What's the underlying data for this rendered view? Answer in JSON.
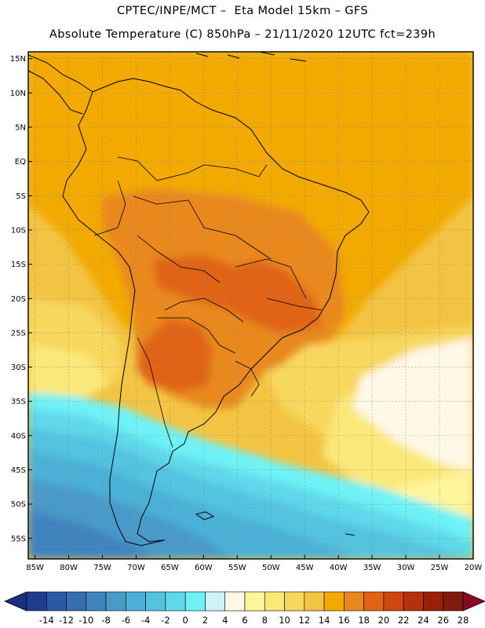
{
  "header": {
    "line1": "CPTEC/INPE/MCT –  Eta Model 15km – GFS",
    "line2": "Absolute Temperature (C) 850hPa – 21/11/2020 12UTC fct=239h"
  },
  "map": {
    "region": "South America",
    "lat_range": [
      -58,
      16
    ],
    "lon_range": [
      -86,
      -20
    ],
    "lat_ticks": [
      {
        "value": 15,
        "label": "15N"
      },
      {
        "value": 10,
        "label": "10N"
      },
      {
        "value": 5,
        "label": "5N"
      },
      {
        "value": 0,
        "label": "EQ"
      },
      {
        "value": -5,
        "label": "5S"
      },
      {
        "value": -10,
        "label": "10S"
      },
      {
        "value": -15,
        "label": "15S"
      },
      {
        "value": -20,
        "label": "20S"
      },
      {
        "value": -25,
        "label": "25S"
      },
      {
        "value": -30,
        "label": "30S"
      },
      {
        "value": -35,
        "label": "35S"
      },
      {
        "value": -40,
        "label": "40S"
      },
      {
        "value": -45,
        "label": "45S"
      },
      {
        "value": -50,
        "label": "50S"
      },
      {
        "value": -55,
        "label": "55S"
      }
    ],
    "lon_ticks": [
      {
        "value": -85,
        "label": "85W"
      },
      {
        "value": -80,
        "label": "80W"
      },
      {
        "value": -75,
        "label": "75W"
      },
      {
        "value": -70,
        "label": "70W"
      },
      {
        "value": -65,
        "label": "65W"
      },
      {
        "value": -60,
        "label": "60W"
      },
      {
        "value": -55,
        "label": "55W"
      },
      {
        "value": -50,
        "label": "50W"
      },
      {
        "value": -45,
        "label": "45W"
      },
      {
        "value": -40,
        "label": "40W"
      },
      {
        "value": -35,
        "label": "35W"
      },
      {
        "value": -30,
        "label": "30W"
      },
      {
        "value": -25,
        "label": "25W"
      },
      {
        "value": -20,
        "label": "20W"
      }
    ]
  },
  "colorbar": {
    "labels": [
      "-14",
      "-12",
      "-10",
      "-8",
      "-6",
      "-4",
      "-2",
      "0",
      "2",
      "4",
      "6",
      "8",
      "10",
      "12",
      "14",
      "16",
      "18",
      "20",
      "22",
      "24",
      "26",
      "28"
    ],
    "colors": [
      "#1f3d8f",
      "#2a5aa6",
      "#356fb0",
      "#3f84bf",
      "#4a9ac8",
      "#4cb0d6",
      "#52c3e0",
      "#5fd8ea",
      "#6ef2f6",
      "#cdf4fb",
      "#fff8e6",
      "#fff59c",
      "#fbe879",
      "#f8d75d",
      "#f3c443",
      "#f2a900",
      "#e9881a",
      "#e06414",
      "#cf470e",
      "#b5310a",
      "#9a2008",
      "#811a0d"
    ],
    "under_color": "#1c2f7a",
    "over_color": "#8a0a26"
  }
}
